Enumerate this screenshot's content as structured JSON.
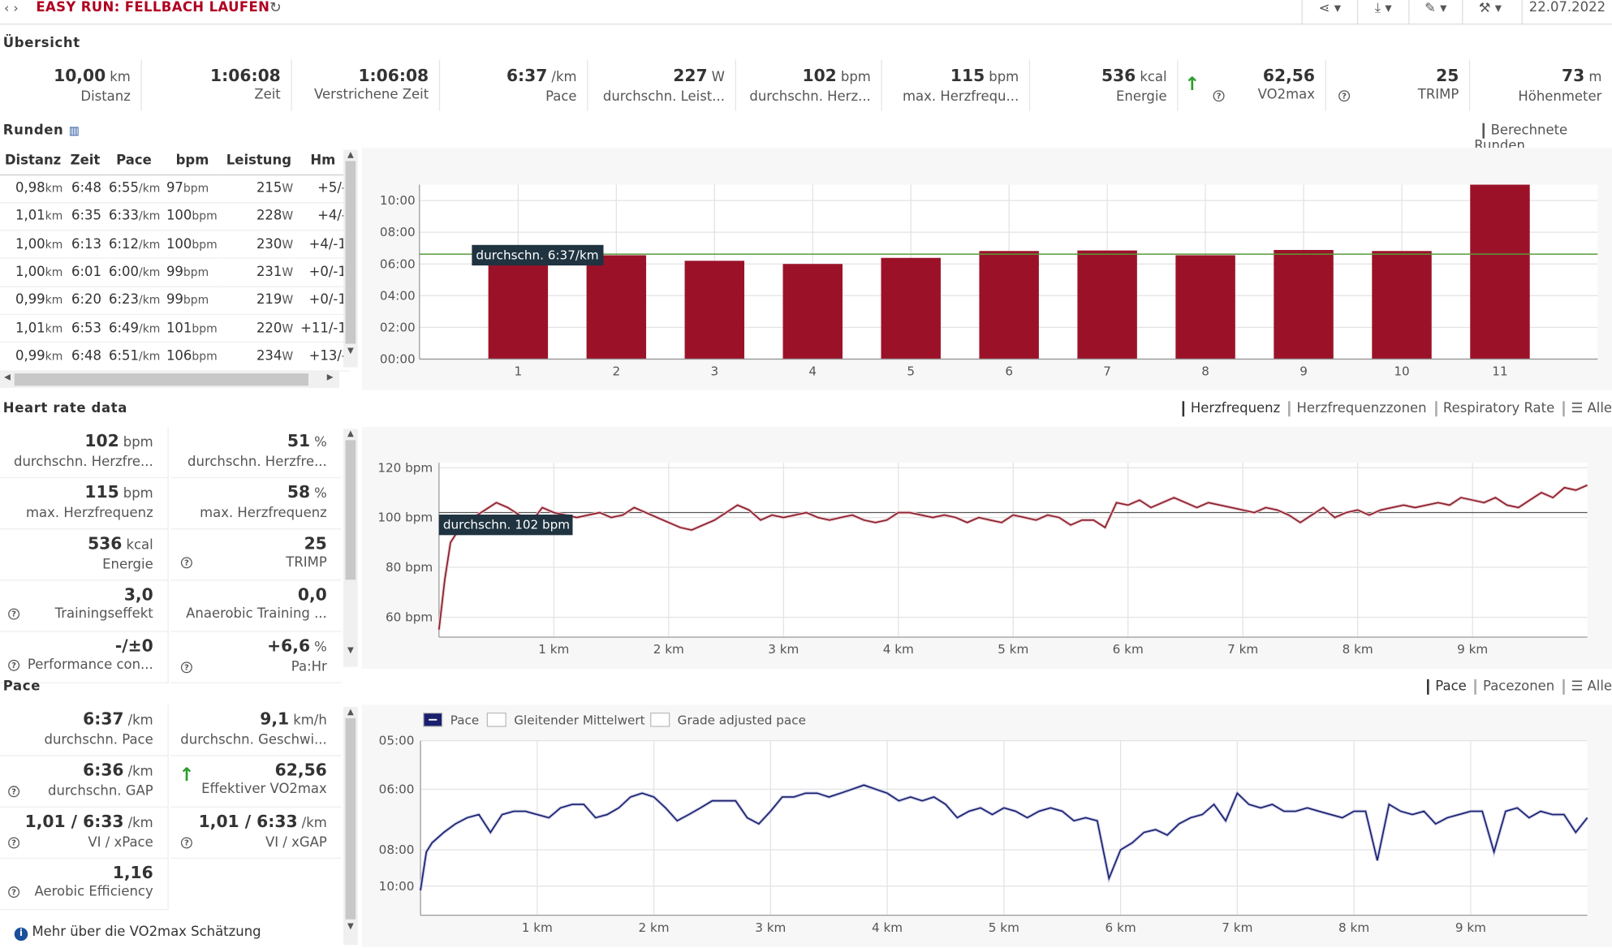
{
  "header": {
    "title": "EASY RUN: FELLBACH LAUFEN",
    "date": "22.07.2022",
    "back": "‹",
    "forward": "›",
    "refresh": "↻",
    "toolbar": [
      {
        "icon": "share-icon",
        "glyph": "≺"
      },
      {
        "icon": "download-icon",
        "glyph": "⤓"
      },
      {
        "icon": "magic-icon",
        "glyph": "✎"
      },
      {
        "icon": "wrench-icon",
        "glyph": "🔧"
      }
    ]
  },
  "overview": {
    "title": "Übersicht",
    "cards": [
      {
        "value": "10,00",
        "unit": "km",
        "label": "Distanz"
      },
      {
        "value": "1:06:08",
        "unit": "",
        "label": "Zeit"
      },
      {
        "value": "1:06:08",
        "unit": "",
        "label": "Verstrichene Zeit"
      },
      {
        "value": "6:37",
        "unit": "/km",
        "label": "Pace"
      },
      {
        "value": "227",
        "unit": "W",
        "label": "durchschn. Leist..."
      },
      {
        "value": "102",
        "unit": "bpm",
        "label": "durchschn. Herz..."
      },
      {
        "value": "115",
        "unit": "bpm",
        "label": "max. Herzfrequ..."
      },
      {
        "value": "536",
        "unit": "kcal",
        "label": "Energie"
      },
      {
        "value": "62,56",
        "unit": "",
        "label": "VO2max"
      },
      {
        "value": "25",
        "unit": "",
        "label": "TRIMP"
      },
      {
        "value": "73",
        "unit": "m",
        "label": "Höhenmeter"
      }
    ]
  },
  "laps": {
    "title": "Runden",
    "right_label": "Berechnete Runden",
    "columns": [
      "Distanz",
      "Zeit",
      "Pace",
      "bpm",
      "Leistung",
      "Hm"
    ],
    "rows": [
      {
        "dist": "0,98",
        "time": "6:48",
        "pace": "6:55",
        "bpm": "97",
        "power": "215",
        "hm": "+5/-"
      },
      {
        "dist": "1,01",
        "time": "6:35",
        "pace": "6:33",
        "bpm": "100",
        "power": "228",
        "hm": "+4/-"
      },
      {
        "dist": "1,00",
        "time": "6:13",
        "pace": "6:12",
        "bpm": "100",
        "power": "230",
        "hm": "+4/-1"
      },
      {
        "dist": "1,00",
        "time": "6:01",
        "pace": "6:00",
        "bpm": "99",
        "power": "231",
        "hm": "+0/-1"
      },
      {
        "dist": "0,99",
        "time": "6:20",
        "pace": "6:23",
        "bpm": "99",
        "power": "219",
        "hm": "+0/-1"
      },
      {
        "dist": "1,01",
        "time": "6:53",
        "pace": "6:49",
        "bpm": "101",
        "power": "220",
        "hm": "+11/-1"
      },
      {
        "dist": "0,99",
        "time": "6:48",
        "pace": "6:51",
        "bpm": "106",
        "power": "234",
        "hm": "+13/-"
      }
    ],
    "units": {
      "km": "km",
      "pace": "/km",
      "bpm": "bpm",
      "w": "W"
    }
  },
  "heart": {
    "title": "Heart rate data",
    "tabs": [
      "Herzfrequenz",
      "Herzfrequenzzonen",
      "Respiratory Rate",
      "☰ Alle"
    ],
    "cells": [
      {
        "value": "102",
        "unit": "bpm",
        "label": "durchschn. Herzfre...",
        "help": false
      },
      {
        "value": "51",
        "unit": "%",
        "label": "durchschn. Herzfre...",
        "help": false
      },
      {
        "value": "115",
        "unit": "bpm",
        "label": "max. Herzfrequenz",
        "help": false
      },
      {
        "value": "58",
        "unit": "%",
        "label": "max. Herzfrequenz",
        "help": false
      },
      {
        "value": "536",
        "unit": "kcal",
        "label": "Energie",
        "help": false
      },
      {
        "value": "25",
        "unit": "",
        "label": "TRIMP",
        "help": true
      },
      {
        "value": "3,0",
        "unit": "",
        "label": "Trainingseffekt",
        "help": true
      },
      {
        "value": "0,0",
        "unit": "",
        "label": "Anaerobic Training ...",
        "help": false
      },
      {
        "value": "-/±0",
        "unit": "",
        "label": "Performance con...",
        "help": true
      },
      {
        "value": "+6,6",
        "unit": "%",
        "label": "Pa:Hr",
        "help": true
      }
    ]
  },
  "pace": {
    "title": "Pace",
    "tabs": [
      "Pace",
      "Pacezonen",
      "☰ Alle"
    ],
    "legend": [
      "Pace",
      "Gleitender Mittelwert",
      "Grade adjusted pace"
    ],
    "cells": [
      {
        "value": "6:37",
        "unit": "/km",
        "label": "durchschn. Pace",
        "help": false,
        "arrow": false
      },
      {
        "value": "9,1",
        "unit": "km/h",
        "label": "durchschn. Geschwi...",
        "help": false,
        "arrow": false
      },
      {
        "value": "6:36",
        "unit": "/km",
        "label": "durchschn. GAP",
        "help": true,
        "arrow": false
      },
      {
        "value": "62,56",
        "unit": "",
        "label": "Effektiver VO2max",
        "help": false,
        "arrow": true
      },
      {
        "value": "1,01 / 6:33",
        "unit": "/km",
        "label": "VI / xPace",
        "help": true,
        "arrow": false
      },
      {
        "value": "1,01 / 6:33",
        "unit": "/km",
        "label": "VI / xGAP",
        "help": true,
        "arrow": false
      },
      {
        "value": "1,16",
        "unit": "",
        "label": "Aerobic Efficiency",
        "help": true,
        "arrow": false
      }
    ],
    "footer": "Mehr über die VO2max Schätzung"
  },
  "chart_data": [
    {
      "type": "bar",
      "categories": [
        "1",
        "2",
        "3",
        "4",
        "5",
        "6",
        "7",
        "8",
        "9",
        "10",
        "11"
      ],
      "values_seconds": [
        407,
        393,
        372,
        360,
        383,
        409,
        411,
        393,
        413,
        409,
        660
      ],
      "ytick_labels": [
        "00:00",
        "02:00",
        "04:00",
        "06:00",
        "08:00",
        "10:00"
      ],
      "ylim_seconds": [
        0,
        660
      ],
      "average_label": "durchschn. 6:37/km",
      "average_seconds": 397,
      "color": "#9b1228",
      "avg_color": "#5a9a3a"
    },
    {
      "type": "line",
      "xlabel_ticks": [
        "1 km",
        "2 km",
        "3 km",
        "4 km",
        "5 km",
        "6 km",
        "7 km",
        "8 km",
        "9 km"
      ],
      "yticks": [
        "60 bpm",
        "80 bpm",
        "100 bpm",
        "120 bpm"
      ],
      "ylim": [
        52,
        122
      ],
      "xlim_km": [
        0,
        10
      ],
      "average": 102,
      "average_label": "durchschn. 102 bpm",
      "color": "#8b1c2a",
      "x_km": [
        0,
        0.05,
        0.1,
        0.2,
        0.3,
        0.4,
        0.5,
        0.6,
        0.7,
        0.8,
        0.9,
        1.0,
        1.1,
        1.2,
        1.3,
        1.4,
        1.5,
        1.6,
        1.7,
        1.8,
        1.9,
        2.0,
        2.1,
        2.2,
        2.3,
        2.4,
        2.5,
        2.6,
        2.7,
        2.8,
        2.9,
        3.0,
        3.1,
        3.2,
        3.3,
        3.4,
        3.5,
        3.6,
        3.7,
        3.8,
        3.9,
        4.0,
        4.1,
        4.2,
        4.3,
        4.4,
        4.5,
        4.6,
        4.7,
        4.8,
        4.9,
        5.0,
        5.1,
        5.2,
        5.3,
        5.4,
        5.5,
        5.6,
        5.7,
        5.8,
        5.9,
        6.0,
        6.1,
        6.2,
        6.3,
        6.4,
        6.5,
        6.6,
        6.7,
        6.8,
        6.9,
        7.0,
        7.1,
        7.2,
        7.3,
        7.4,
        7.5,
        7.6,
        7.7,
        7.8,
        7.9,
        8.0,
        8.1,
        8.2,
        8.3,
        8.4,
        8.5,
        8.6,
        8.7,
        8.8,
        8.9,
        9.0,
        9.1,
        9.2,
        9.3,
        9.4,
        9.5,
        9.6,
        9.7,
        9.8,
        9.9,
        10.0
      ],
      "y_bpm": [
        55,
        75,
        90,
        97,
        100,
        103,
        106,
        104,
        101,
        98,
        104,
        102,
        101,
        100,
        101,
        102,
        100,
        101,
        104,
        102,
        100,
        98,
        96,
        95,
        97,
        99,
        102,
        105,
        103,
        99,
        101,
        100,
        101,
        102,
        100,
        99,
        100,
        101,
        99,
        98,
        99,
        102,
        102,
        101,
        100,
        101,
        100,
        98,
        100,
        99,
        98,
        101,
        100,
        99,
        101,
        100,
        97,
        99,
        99,
        96,
        106,
        105,
        107,
        104,
        106,
        108,
        106,
        104,
        106,
        105,
        104,
        103,
        102,
        104,
        103,
        101,
        98,
        101,
        104,
        100,
        102,
        103,
        101,
        103,
        104,
        105,
        104,
        105,
        106,
        105,
        108,
        107,
        106,
        108,
        105,
        104,
        107,
        110,
        108,
        112,
        111,
        113
      ]
    },
    {
      "type": "line",
      "xlabel_ticks": [
        "1 km",
        "2 km",
        "3 km",
        "4 km",
        "5 km",
        "6 km",
        "7 km",
        "8 km",
        "9 km"
      ],
      "yticks": [
        "05:00",
        "06:00",
        "08:00",
        "10:00"
      ],
      "series": [
        {
          "name": "Pace"
        }
      ],
      "color": "#1a1f6e",
      "xlim_km": [
        0,
        10
      ],
      "x_km": [
        0,
        0.05,
        0.1,
        0.2,
        0.3,
        0.4,
        0.5,
        0.6,
        0.7,
        0.8,
        0.9,
        1.0,
        1.1,
        1.2,
        1.3,
        1.4,
        1.5,
        1.6,
        1.7,
        1.8,
        1.9,
        2.0,
        2.1,
        2.2,
        2.3,
        2.4,
        2.5,
        2.6,
        2.7,
        2.8,
        2.9,
        3.0,
        3.1,
        3.2,
        3.3,
        3.4,
        3.5,
        3.6,
        3.7,
        3.8,
        3.9,
        4.0,
        4.1,
        4.2,
        4.3,
        4.4,
        4.5,
        4.6,
        4.7,
        4.8,
        4.9,
        5.0,
        5.1,
        5.2,
        5.3,
        5.4,
        5.5,
        5.6,
        5.7,
        5.8,
        5.9,
        6.0,
        6.1,
        6.2,
        6.3,
        6.4,
        6.5,
        6.6,
        6.7,
        6.8,
        6.9,
        7.0,
        7.1,
        7.2,
        7.3,
        7.4,
        7.5,
        7.6,
        7.7,
        7.8,
        7.9,
        8.0,
        8.1,
        8.2,
        8.3,
        8.4,
        8.5,
        8.6,
        8.7,
        8.8,
        8.9,
        9.0,
        9.1,
        9.2,
        9.3,
        9.4,
        9.5,
        9.6,
        9.7,
        9.8,
        9.9,
        10.0
      ],
      "y_min_per_km": [
        10.3,
        8.1,
        7.7,
        7.3,
        7.0,
        6.8,
        6.7,
        7.3,
        6.7,
        6.6,
        6.6,
        6.7,
        6.8,
        6.5,
        6.4,
        6.4,
        6.8,
        6.7,
        6.5,
        6.2,
        6.1,
        6.2,
        6.5,
        6.9,
        6.7,
        6.5,
        6.3,
        6.3,
        6.3,
        6.8,
        7.0,
        6.6,
        6.2,
        6.2,
        6.1,
        6.1,
        6.2,
        6.1,
        6.0,
        5.9,
        6.0,
        6.1,
        6.3,
        6.2,
        6.3,
        6.2,
        6.4,
        6.8,
        6.6,
        6.5,
        6.7,
        6.5,
        6.6,
        6.8,
        6.6,
        6.5,
        6.6,
        6.9,
        6.8,
        6.9,
        9.5,
        8.0,
        7.7,
        7.3,
        7.2,
        7.4,
        7.0,
        6.8,
        6.7,
        6.4,
        6.9,
        6.1,
        6.4,
        6.5,
        6.4,
        6.6,
        6.6,
        6.5,
        6.6,
        6.7,
        6.8,
        6.6,
        6.6,
        8.5,
        6.4,
        6.6,
        6.7,
        6.6,
        7.0,
        6.8,
        6.7,
        6.6,
        6.6,
        8.1,
        6.6,
        6.5,
        6.8,
        6.6,
        6.7,
        6.7,
        7.3,
        6.8
      ]
    }
  ]
}
